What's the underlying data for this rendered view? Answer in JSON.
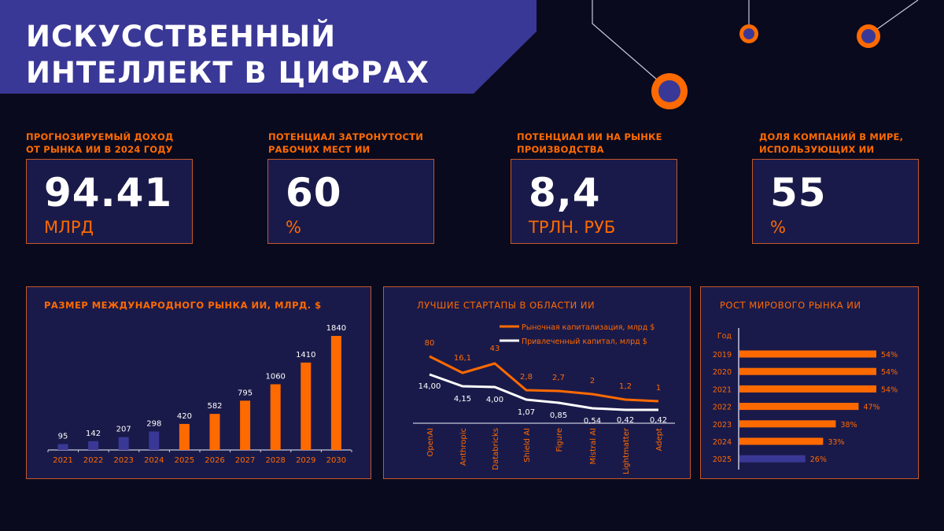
{
  "header": {
    "title_line1": "Искусственный",
    "title_line2": "интеллект в цифрах"
  },
  "colors": {
    "background": "#0a0a1e",
    "banner": "#3a3896",
    "panel": "#1a1a4a",
    "accent": "#ff6a00",
    "border": "#c4582a",
    "historical_bar": "#3a3896",
    "text": "#ffffff"
  },
  "kpis": [
    {
      "label_line1": "Прогнозируемый доход",
      "label_line2": "от рынка ИИ в 2024 году",
      "value": "94.41",
      "unit": "млрд"
    },
    {
      "label_line1": "Потенциал затронутости",
      "label_line2": "рабочих мест ИИ",
      "value": "60",
      "unit": "%"
    },
    {
      "label_line1": "Потенциал ИИ на рынке",
      "label_line2": "производства",
      "value": "8,4",
      "unit": "трлн. руб"
    },
    {
      "label_line1": "Доля компаний в мире,",
      "label_line2": "использующих ИИ",
      "value": "55",
      "unit": "%"
    }
  ],
  "chart_data": [
    {
      "type": "bar",
      "title": "Размер международного рынка ИИ, млрд. $",
      "categories": [
        "2021",
        "2022",
        "2023",
        "2024",
        "2025",
        "2026",
        "2027",
        "2028",
        "2029",
        "2030"
      ],
      "values": [
        95,
        142,
        207,
        298,
        420,
        582,
        795,
        1060,
        1410,
        1840
      ],
      "bar_colors": [
        "#3a3896",
        "#3a3896",
        "#3a3896",
        "#3a3896",
        "#ff6a00",
        "#ff6a00",
        "#ff6a00",
        "#ff6a00",
        "#ff6a00",
        "#ff6a00"
      ],
      "value_labels": [
        "95",
        "142",
        "207",
        "298",
        "420",
        "582",
        "795",
        "1060",
        "1410",
        "1840"
      ],
      "xlabel": "",
      "ylabel": "",
      "ylim": [
        0,
        1900
      ],
      "grid": false
    },
    {
      "type": "line",
      "title": "Лучшие стартапы в области ИИ",
      "categories": [
        "OpenAI",
        "Anthropic",
        "Databricks",
        "Shield AI",
        "Figure",
        "Mistral AI",
        "Lightmatter",
        "Adept"
      ],
      "series": [
        {
          "name": "Рыночная капитализация, млрд $",
          "color": "#ff6a00",
          "values": [
            80,
            16.1,
            43,
            2.8,
            2.7,
            2,
            1.2,
            1
          ],
          "labels": [
            "80",
            "16,1",
            "43",
            "2,8",
            "2,7",
            "2",
            "1,2",
            "1"
          ]
        },
        {
          "name": "Привлеченный капитал, млрд $",
          "color": "#ffffff",
          "values": [
            14.0,
            4.15,
            4.0,
            1.07,
            0.85,
            0.54,
            0.42,
            0.42
          ],
          "labels": [
            "14,00",
            "4,15",
            "4,00",
            "1,07",
            "0,85",
            "0,54",
            "0,42",
            "0,42"
          ]
        }
      ],
      "legend_position": "top-right",
      "grid": false
    },
    {
      "type": "bar",
      "orientation": "horizontal",
      "title": "Рост мирового рынка ИИ",
      "axis_header": "Год",
      "categories": [
        "2019",
        "2020",
        "2021",
        "2022",
        "2023",
        "2024",
        "2025"
      ],
      "values": [
        54,
        54,
        54,
        47,
        38,
        33,
        26
      ],
      "value_labels": [
        "54%",
        "54%",
        "54%",
        "47%",
        "38%",
        "33%",
        "26%"
      ],
      "bar_colors": [
        "#ff6a00",
        "#ff6a00",
        "#ff6a00",
        "#ff6a00",
        "#ff6a00",
        "#ff6a00",
        "#3a3896"
      ],
      "xlim": [
        0,
        60
      ]
    }
  ]
}
